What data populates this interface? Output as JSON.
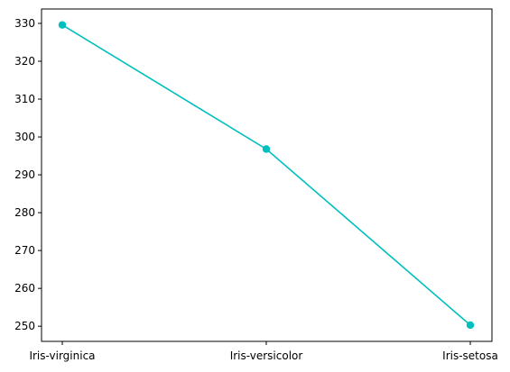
{
  "chart_data": {
    "type": "line",
    "categories": [
      "Iris-virginica",
      "Iris-versicolor",
      "Iris-setosa"
    ],
    "values": [
      329.6,
      296.8,
      250.3
    ],
    "title": "",
    "xlabel": "",
    "ylabel": "",
    "ylim": [
      246.0,
      333.8
    ],
    "yticks": [
      250,
      260,
      270,
      280,
      290,
      300,
      310,
      320,
      330
    ],
    "grid": false,
    "legend": "none",
    "colors": {
      "line": "#00bfbf",
      "marker": "#00bfbf",
      "axes": "#000000"
    }
  }
}
